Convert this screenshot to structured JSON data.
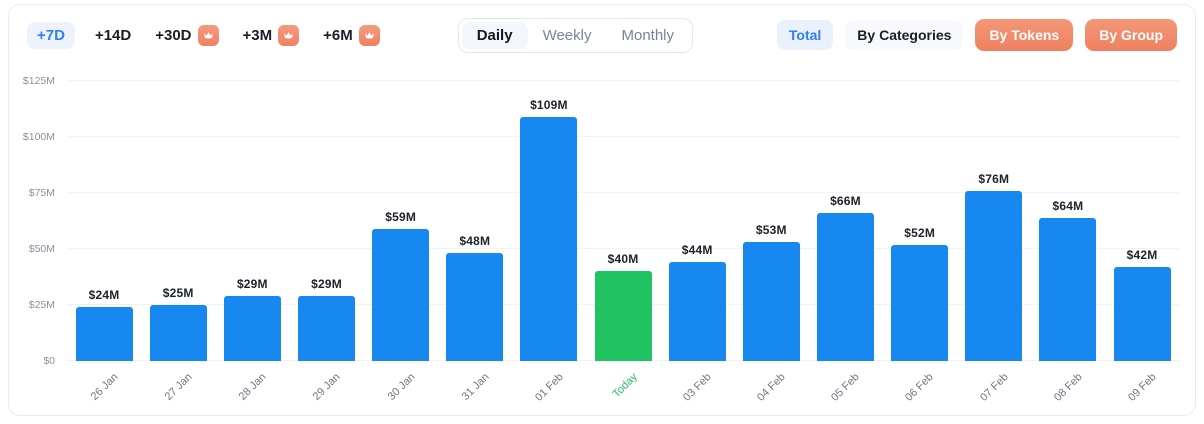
{
  "header": {
    "range_buttons": [
      {
        "label": "+7D",
        "active": true,
        "locked": false
      },
      {
        "label": "+14D",
        "active": false,
        "locked": false
      },
      {
        "label": "+30D",
        "active": false,
        "locked": true
      },
      {
        "label": "+3M",
        "active": false,
        "locked": true
      },
      {
        "label": "+6M",
        "active": false,
        "locked": true
      }
    ],
    "period_tabs": [
      {
        "label": "Daily",
        "active": true
      },
      {
        "label": "Weekly",
        "active": false
      },
      {
        "label": "Monthly",
        "active": false
      }
    ],
    "view_buttons": [
      {
        "label": "Total",
        "variant": "blue"
      },
      {
        "label": "By Categories",
        "variant": "neutral"
      },
      {
        "label": "By Tokens",
        "variant": "premium"
      },
      {
        "label": "By Group",
        "variant": "premium"
      }
    ],
    "crown_icon": "crown"
  },
  "colors": {
    "accent_blue": "#2f80f5",
    "bar_blue": "#1788f0",
    "bar_green": "#21c262",
    "premium_orange": "#f08a68",
    "axis_text": "#6f7684",
    "value_text": "#1d2129",
    "gridline": "#f0f2f6"
  },
  "chart_data": {
    "type": "bar",
    "title": "",
    "xlabel": "",
    "ylabel": "",
    "grid": true,
    "legend": null,
    "categories": [
      "26 Jan",
      "27 Jan",
      "28 Jan",
      "29 Jan",
      "30 Jan",
      "31 Jan",
      "01 Feb",
      "Today",
      "03 Feb",
      "04 Feb",
      "05 Feb",
      "06 Feb",
      "07 Feb",
      "08 Feb",
      "09 Feb"
    ],
    "values": [
      24,
      25,
      29,
      29,
      59,
      48,
      109,
      40,
      44,
      53,
      66,
      52,
      76,
      64,
      42
    ],
    "bar_labels": [
      "$24M",
      "$25M",
      "$29M",
      "$29M",
      "$59M",
      "$48M",
      "$109M",
      "$40M",
      "$44M",
      "$53M",
      "$66M",
      "$52M",
      "$76M",
      "$64M",
      "$42M"
    ],
    "highlight_index": 7,
    "ylim": [
      0,
      125
    ],
    "y_ticks": [
      {
        "value": 0,
        "label": "$0"
      },
      {
        "value": 25,
        "label": "$25M"
      },
      {
        "value": 50,
        "label": "$50M"
      },
      {
        "value": 75,
        "label": "$75M"
      },
      {
        "value": 100,
        "label": "$100M"
      },
      {
        "value": 125,
        "label": "$125M"
      }
    ]
  }
}
